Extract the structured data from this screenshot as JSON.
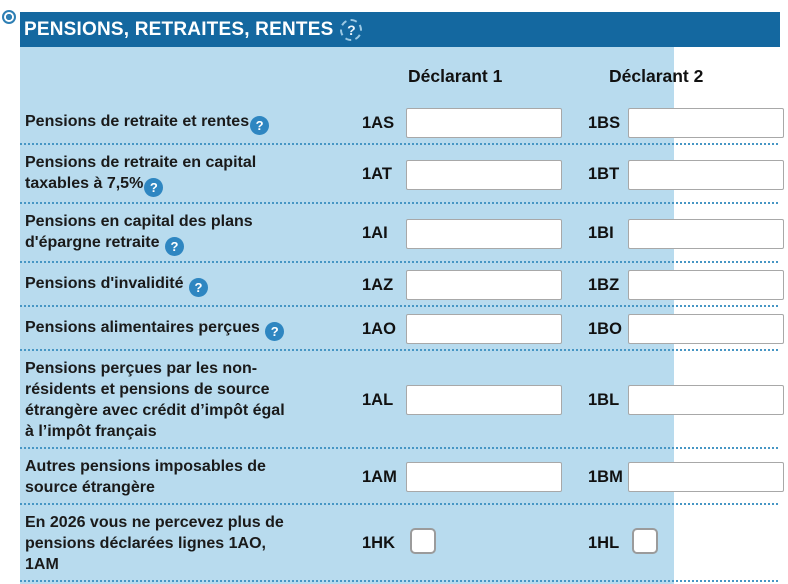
{
  "section": {
    "title": "PENSIONS, RETRAITES, RENTES",
    "help_glyph": "?",
    "radio_selected": true
  },
  "columns": {
    "declarant1": "Déclarant 1",
    "declarant2": "Déclarant 2"
  },
  "rows": [
    {
      "label": "Pensions de retraite et rentes",
      "help": true,
      "code1": "1AS",
      "code2": "1BS",
      "field": "input",
      "value1": "",
      "value2": ""
    },
    {
      "label": "Pensions de retraite en capital\ntaxables à 7,5%",
      "help": true,
      "code1": "1AT",
      "code2": "1BT",
      "field": "input",
      "value1": "",
      "value2": ""
    },
    {
      "label": "Pensions en capital des plans\nd'épargne retraite ",
      "help": true,
      "code1": "1AI",
      "code2": "1BI",
      "field": "input",
      "value1": "",
      "value2": ""
    },
    {
      "label": "Pensions d'invalidité ",
      "help": true,
      "code1": "1AZ",
      "code2": "1BZ",
      "field": "input",
      "value1": "",
      "value2": ""
    },
    {
      "label": "Pensions alimentaires perçues ",
      "help": true,
      "code1": "1AO",
      "code2": "1BO",
      "field": "input",
      "value1": "",
      "value2": ""
    },
    {
      "label": "Pensions perçues par les non-\nrésidents et pensions de source\nétrangère avec crédit d’impôt égal\nà l’impôt français",
      "help": false,
      "code1": "1AL",
      "code2": "1BL",
      "field": "input",
      "value1": "",
      "value2": ""
    },
    {
      "label": "Autres pensions imposables de\nsource étrangère",
      "help": false,
      "code1": "1AM",
      "code2": "1BM",
      "field": "input",
      "value1": "",
      "value2": ""
    },
    {
      "label": "En 2026 vous ne percevez plus de\npensions déclarées lignes 1AO,\n1AM",
      "help": false,
      "code1": "1HK",
      "code2": "1HL",
      "field": "checkbox",
      "checked1": false,
      "checked2": false
    }
  ],
  "colors": {
    "header_bg": "#1468a0",
    "panel_bg": "#b8dbee",
    "dotted_separator": "#4796c4",
    "help_icon_bg": "#2e86c1",
    "input_border": "#a8a8a8"
  }
}
